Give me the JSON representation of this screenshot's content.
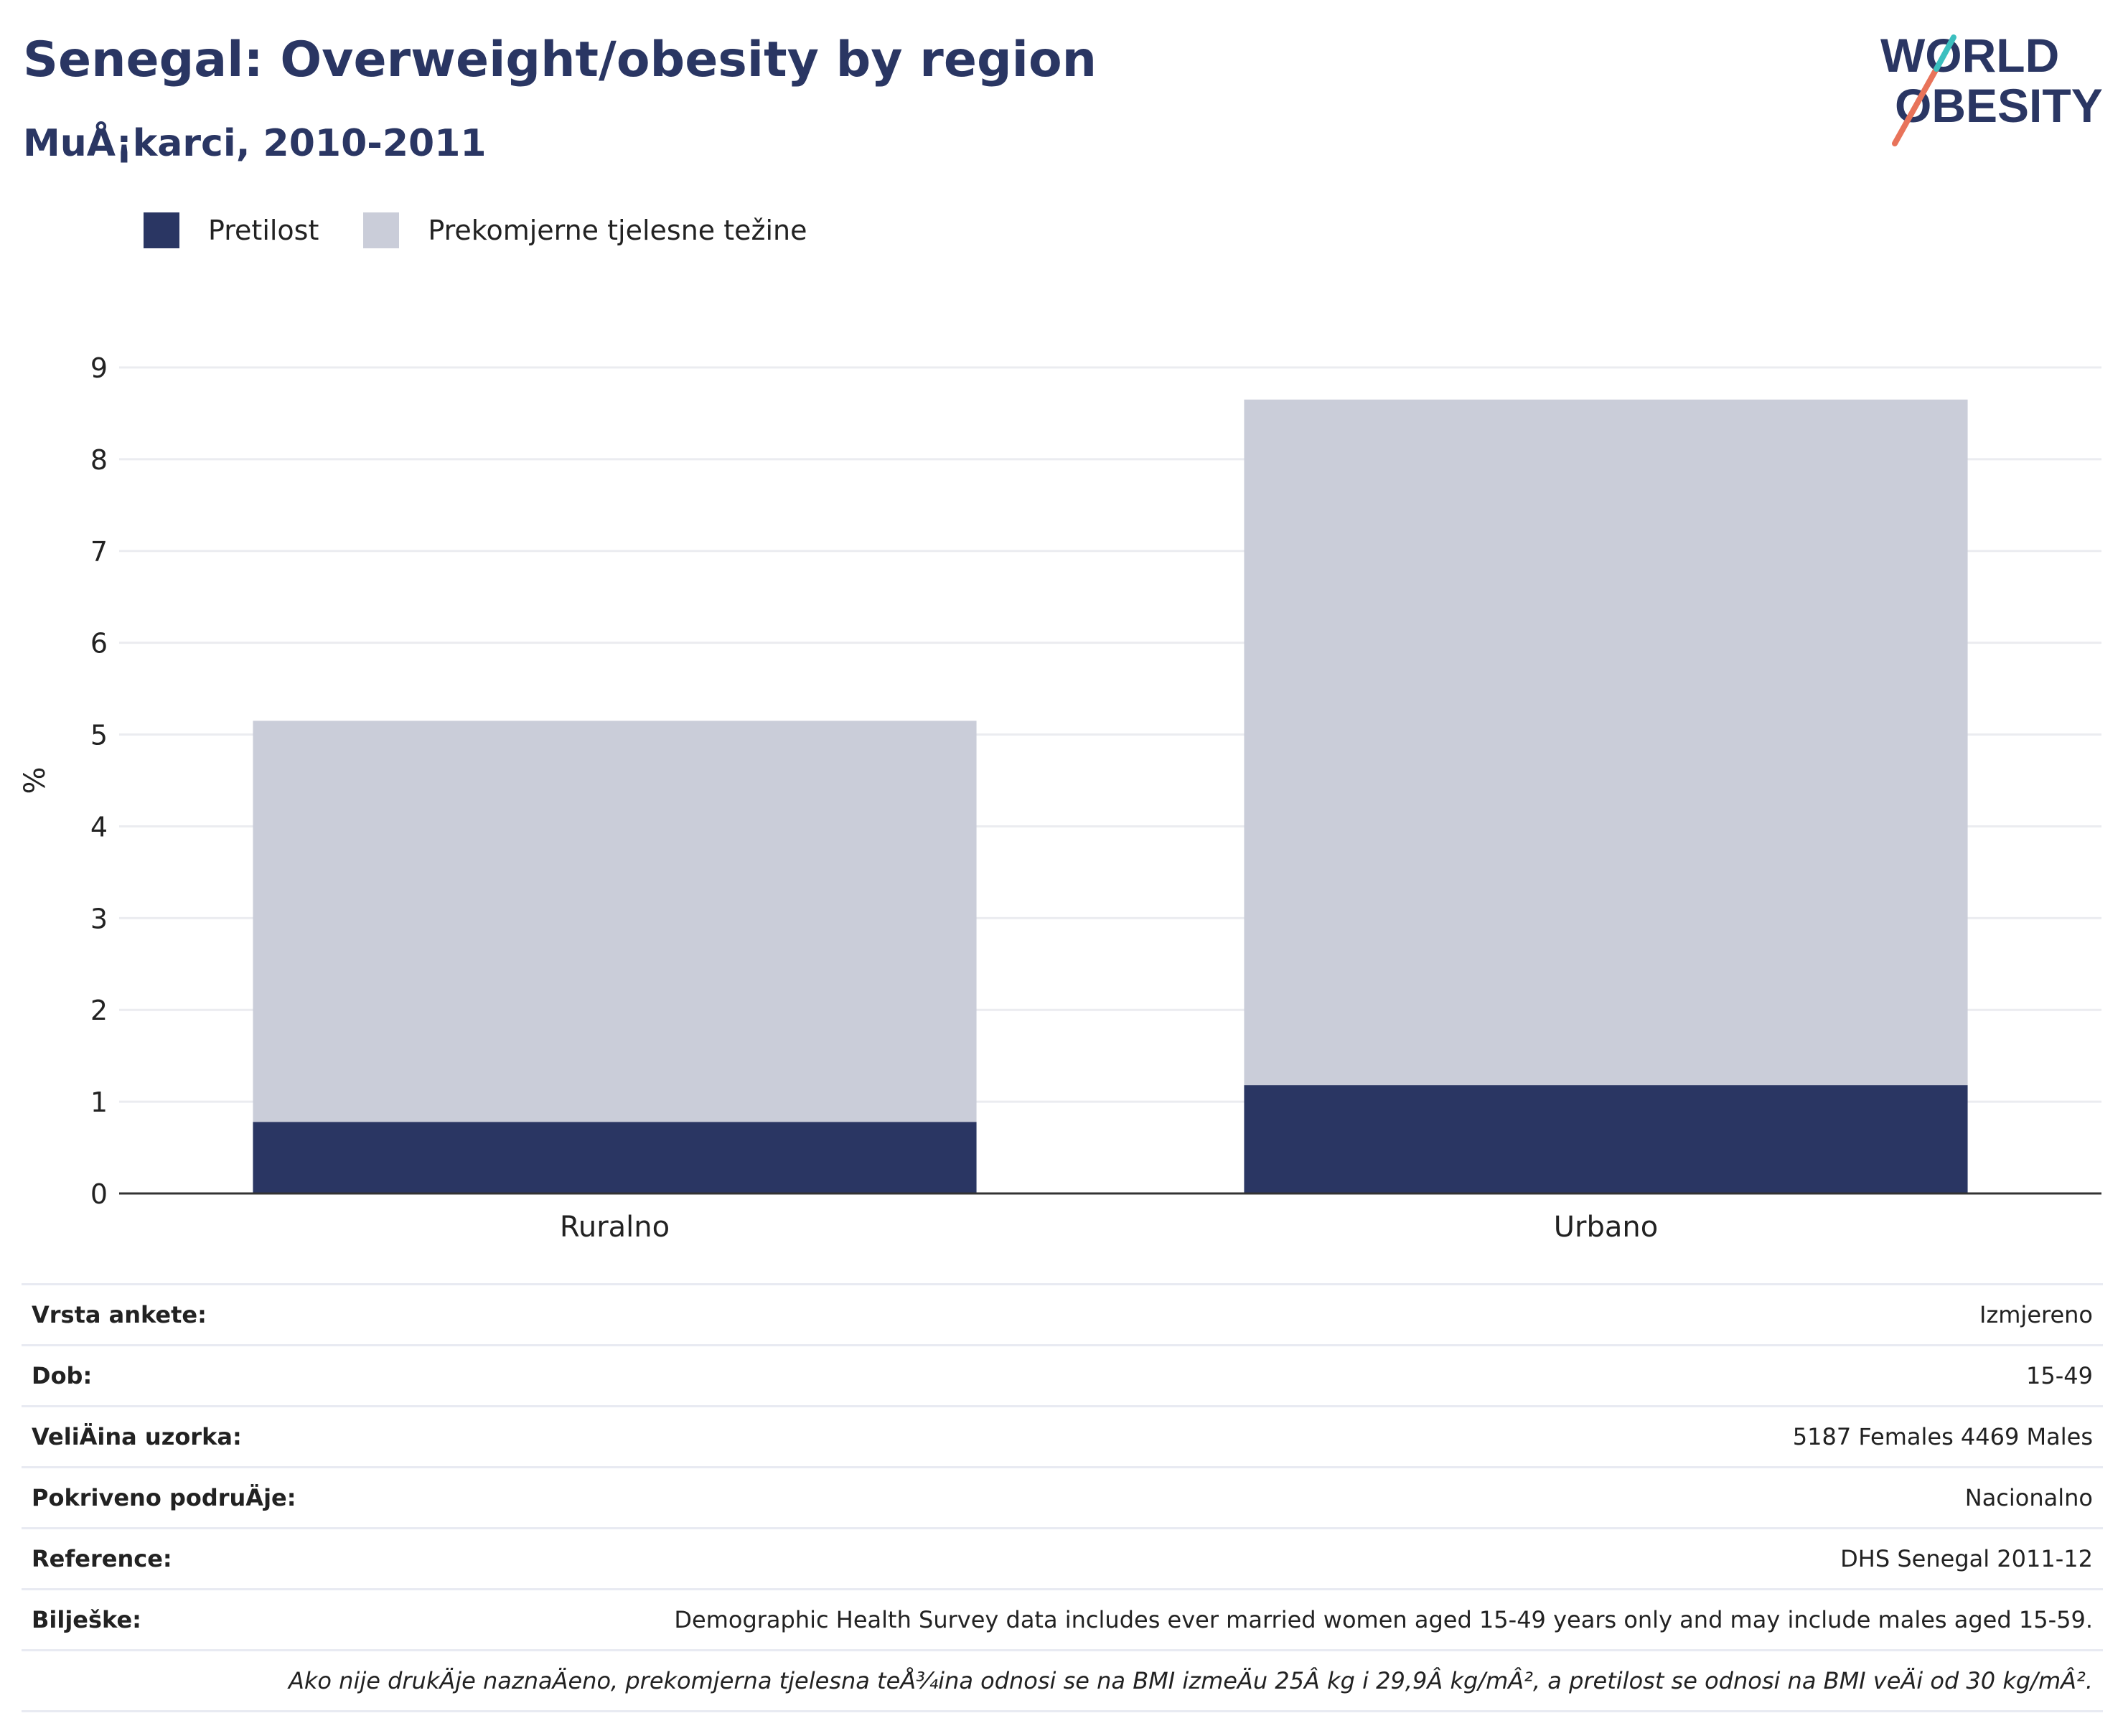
{
  "title": "Senegal: Overweight/obesity by region",
  "subtitle": "MuÅ¡karci, 2010-2011",
  "logo": {
    "line1": "WORLD",
    "line2": "OBESITY",
    "colors": [
      "#2a3663",
      "#e8735a",
      "#3bbfbf"
    ]
  },
  "legend": [
    {
      "label": "Pretilost",
      "color": "#2a3663"
    },
    {
      "label": "Prekomjerne tjelesne težine",
      "color": "#cacdd9"
    }
  ],
  "chart_data": {
    "type": "bar",
    "stacked": true,
    "categories": [
      "Ruralno",
      "Urbano"
    ],
    "series": [
      {
        "name": "Pretilost",
        "values": [
          0.78,
          1.18
        ],
        "color": "#2a3663"
      },
      {
        "name": "Prekomjerne tjelesne težine",
        "values": [
          4.37,
          7.47
        ],
        "color": "#cacdd9"
      }
    ],
    "ylabel": "%",
    "ylim": [
      0,
      9
    ],
    "yticks": [
      "0",
      "1",
      "2",
      "3",
      "4",
      "5",
      "6",
      "7",
      "8",
      "9"
    ],
    "grid": true,
    "legend_position": "top-left"
  },
  "info": [
    {
      "label": "Vrsta ankete:",
      "value": "Izmjereno"
    },
    {
      "label": "Dob:",
      "value": "15-49"
    },
    {
      "label": "VeliÄina uzorka:",
      "value": "5187 Females 4469 Males"
    },
    {
      "label": "Pokriveno podruÄje:",
      "value": "Nacionalno"
    },
    {
      "label": "Reference:",
      "value": "DHS Senegal 2011-12"
    },
    {
      "label": "Bilješke:",
      "value": "Demographic Health Survey data includes ever married women aged 15-49 years only and may include males aged 15-59."
    }
  ],
  "footnote": "Ako nije drukÄje naznaÄeno, prekomjerna tjelesna teÅ¾ina odnosi se na BMI izmeÄu 25Â kg i 29,9Â kg/mÂ², a pretilost se odnosi na BMI veÄi od 30 kg/mÂ²."
}
